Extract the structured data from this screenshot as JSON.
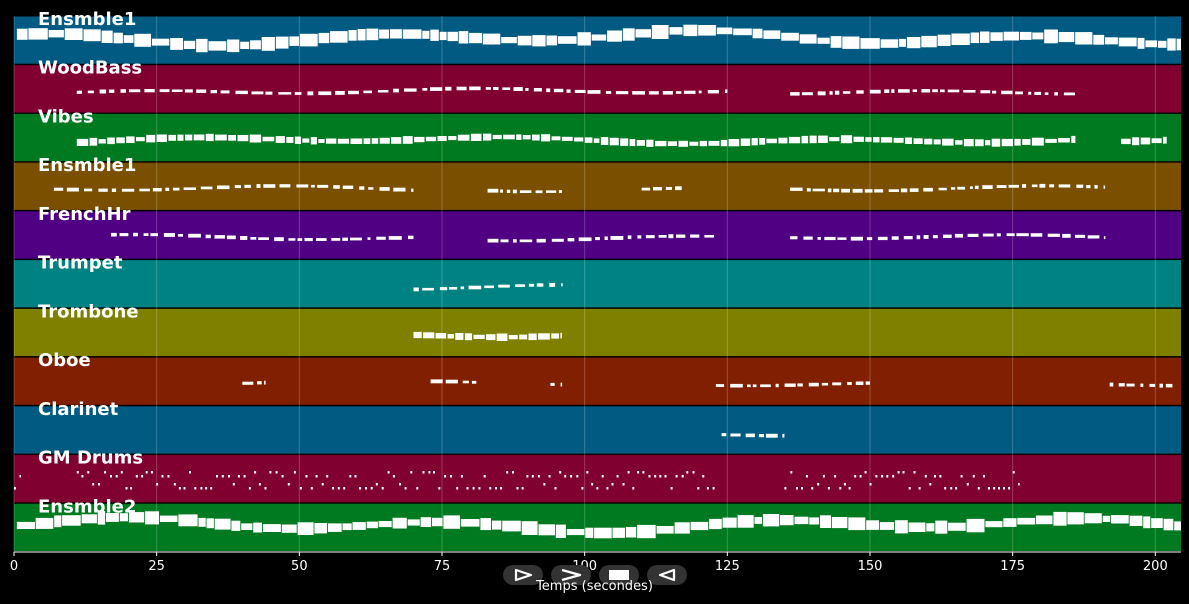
{
  "chart_data": {
    "type": "piano-roll",
    "xlabel": "Temps (secondes)",
    "xlim": [
      0,
      204.5
    ],
    "xticks": [
      0,
      25,
      50,
      75,
      100,
      125,
      150,
      175,
      200
    ],
    "grid": true,
    "tracks": [
      {
        "name": "Ensmble1",
        "color": "#005a82",
        "style": "dense-chords",
        "segments": [
          [
            0.5,
            204.5
          ]
        ]
      },
      {
        "name": "WoodBass",
        "color": "#800030",
        "style": "sparse",
        "segments": [
          [
            11,
            125
          ],
          [
            136,
            186
          ]
        ]
      },
      {
        "name": "Vibes",
        "color": "#007a20",
        "style": "dense",
        "segments": [
          [
            11,
            186
          ],
          [
            194,
            202
          ]
        ]
      },
      {
        "name": "Ensmble1",
        "color": "#7a5000",
        "style": "sparse",
        "segments": [
          [
            7,
            70
          ],
          [
            83,
            96
          ],
          [
            110,
            117
          ],
          [
            136,
            191
          ]
        ]
      },
      {
        "name": "FrenchHr",
        "color": "#500082",
        "style": "sparse",
        "segments": [
          [
            17,
            70
          ],
          [
            83,
            123
          ],
          [
            136,
            191
          ]
        ]
      },
      {
        "name": "Trumpet",
        "color": "#008282",
        "style": "sparse",
        "segments": [
          [
            70,
            96
          ]
        ]
      },
      {
        "name": "Trombone",
        "color": "#808000",
        "style": "dense",
        "segments": [
          [
            70,
            96
          ]
        ]
      },
      {
        "name": "Oboe",
        "color": "#802000",
        "style": "sparse",
        "segments": [
          [
            40,
            44
          ],
          [
            73,
            81
          ],
          [
            94,
            96
          ],
          [
            123,
            150
          ],
          [
            192,
            203
          ]
        ]
      },
      {
        "name": "Clarinet",
        "color": "#005a82",
        "style": "sparse",
        "segments": [
          [
            124,
            135
          ]
        ]
      },
      {
        "name": "GM Drums",
        "color": "#800030",
        "style": "drums",
        "segments": [
          [
            0,
            1
          ],
          [
            11,
            123
          ],
          [
            135,
            176
          ]
        ]
      },
      {
        "name": "Ensmble2",
        "color": "#007a20",
        "style": "dense-chords",
        "segments": [
          [
            0.5,
            204.5
          ]
        ]
      }
    ]
  },
  "player": {
    "buttons": [
      {
        "name": "play-button",
        "icon": "play-icon"
      },
      {
        "name": "forward-button",
        "icon": "forward-icon"
      },
      {
        "name": "stop-button",
        "icon": "stop-icon"
      },
      {
        "name": "rewind-button",
        "icon": "rewind-icon"
      }
    ]
  }
}
